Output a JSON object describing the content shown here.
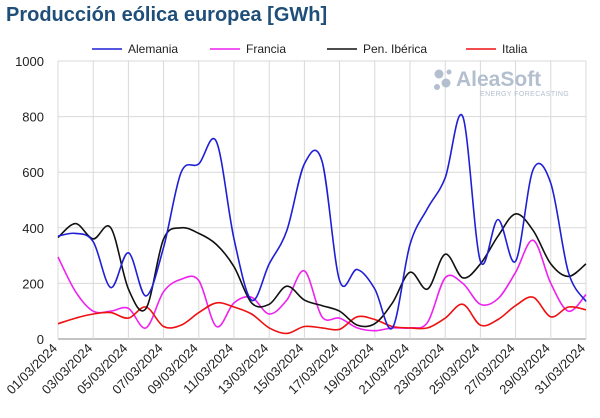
{
  "title": "Producción eólica europea [GWh]",
  "watermark": {
    "name": "AleaSoft",
    "tagline": "ENERGY FORECASTING",
    "color": "#b3bfcf"
  },
  "chart_data": {
    "type": "line",
    "title": "Producción eólica europea [GWh]",
    "xlabel": "",
    "ylabel": "",
    "ylim": [
      0,
      1000
    ],
    "yticks": [
      0,
      200,
      400,
      600,
      800,
      1000
    ],
    "grid": true,
    "legend_position": "top",
    "x": [
      "01/03/2024",
      "02/03/2024",
      "03/03/2024",
      "04/03/2024",
      "05/03/2024",
      "06/03/2024",
      "07/03/2024",
      "08/03/2024",
      "09/03/2024",
      "10/03/2024",
      "11/03/2024",
      "12/03/2024",
      "13/03/2024",
      "14/03/2024",
      "15/03/2024",
      "16/03/2024",
      "17/03/2024",
      "18/03/2024",
      "19/03/2024",
      "20/03/2024",
      "21/03/2024",
      "22/03/2024",
      "23/03/2024",
      "24/03/2024",
      "25/03/2024",
      "26/03/2024",
      "27/03/2024",
      "28/03/2024",
      "29/03/2024",
      "30/03/2024",
      "31/03/2024"
    ],
    "xtick_labels": [
      "01/03/2024",
      "03/03/2024",
      "05/03/2024",
      "07/03/2024",
      "09/03/2024",
      "11/03/2024",
      "13/03/2024",
      "15/03/2024",
      "17/03/2024",
      "19/03/2024",
      "21/03/2024",
      "23/03/2024",
      "25/03/2024",
      "27/03/2024",
      "29/03/2024",
      "31/03/2024"
    ],
    "series": [
      {
        "name": "Alemania",
        "color": "#1f1fd6",
        "values": [
          370,
          380,
          350,
          185,
          310,
          155,
          330,
          600,
          630,
          710,
          360,
          140,
          270,
          390,
          630,
          640,
          210,
          250,
          180,
          40,
          340,
          470,
          580,
          800,
          280,
          430,
          280,
          610,
          560,
          240,
          135
        ]
      },
      {
        "name": "Francia",
        "color": "#ee22ee",
        "values": [
          295,
          170,
          100,
          100,
          110,
          40,
          170,
          215,
          210,
          45,
          130,
          150,
          90,
          140,
          245,
          80,
          75,
          40,
          30,
          40,
          40,
          60,
          220,
          200,
          125,
          145,
          240,
          355,
          200,
          100,
          160
        ]
      },
      {
        "name": "Pen. Ibérica",
        "color": "#111111",
        "values": [
          365,
          415,
          360,
          400,
          180,
          110,
          360,
          400,
          380,
          340,
          260,
          130,
          125,
          190,
          140,
          120,
          100,
          50,
          55,
          130,
          240,
          180,
          305,
          220,
          270,
          370,
          450,
          390,
          270,
          225,
          270
        ]
      },
      {
        "name": "Italia",
        "color": "#ee1111",
        "values": [
          55,
          75,
          90,
          95,
          75,
          115,
          45,
          50,
          95,
          130,
          115,
          90,
          40,
          20,
          45,
          40,
          35,
          80,
          70,
          45,
          40,
          40,
          75,
          125,
          50,
          70,
          120,
          150,
          80,
          115,
          105
        ]
      }
    ]
  }
}
